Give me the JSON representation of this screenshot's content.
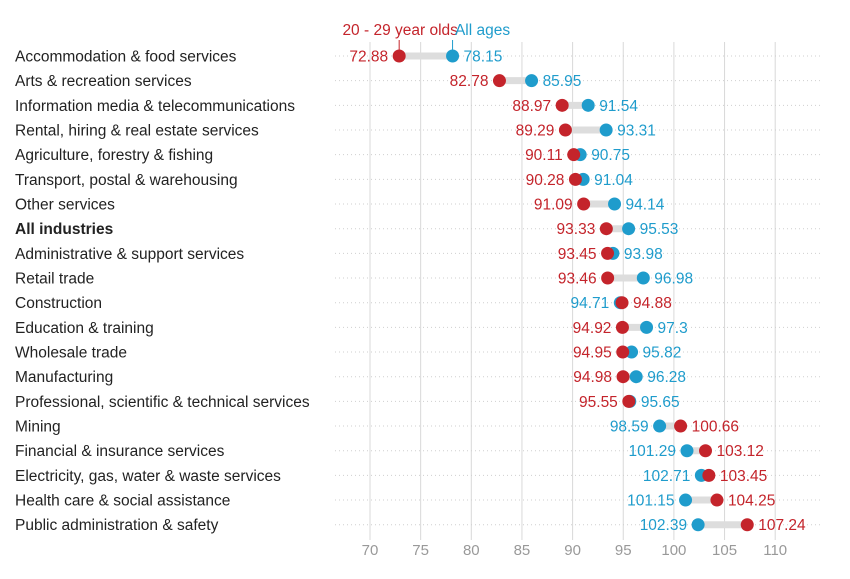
{
  "chart_data": {
    "type": "dumbbell",
    "categories": [
      "Accommodation & food services",
      "Arts & recreation services",
      "Information media & telecommunications",
      "Rental, hiring & real estate services",
      "Agriculture, forestry & fishing",
      "Transport, postal & warehousing",
      "Other services",
      "All industries",
      "Administrative & support services",
      "Retail trade",
      "Construction",
      "Education & training",
      "Wholesale trade",
      "Manufacturing",
      "Professional, scientific & technical services",
      "Mining",
      "Financial & insurance services",
      "Electricity, gas, water & waste services",
      "Health care & social assistance",
      "Public administration & safety"
    ],
    "bold_category": "All industries",
    "series": [
      {
        "name": "20 - 29 year olds",
        "color": "#c4242b",
        "values": [
          72.88,
          82.78,
          88.97,
          89.29,
          90.11,
          90.28,
          91.09,
          93.33,
          93.45,
          93.46,
          94.88,
          94.92,
          94.95,
          94.98,
          95.55,
          100.66,
          103.12,
          103.45,
          104.25,
          107.24
        ]
      },
      {
        "name": "All ages",
        "color": "#1f9ccc",
        "values": [
          78.15,
          85.95,
          91.54,
          93.31,
          90.75,
          91.04,
          94.14,
          95.53,
          93.98,
          96.98,
          94.71,
          97.3,
          95.82,
          96.28,
          95.65,
          98.59,
          101.29,
          102.71,
          101.15,
          102.39
        ]
      }
    ],
    "xlim": [
      67,
      112
    ],
    "xticks": [
      70,
      75,
      80,
      85,
      90,
      95,
      100,
      105,
      110
    ],
    "grid": true,
    "connector_color": "#dddddd",
    "label_color": "#222222",
    "tick_color": "#999999",
    "gridline_color": "#d8d8d8"
  }
}
